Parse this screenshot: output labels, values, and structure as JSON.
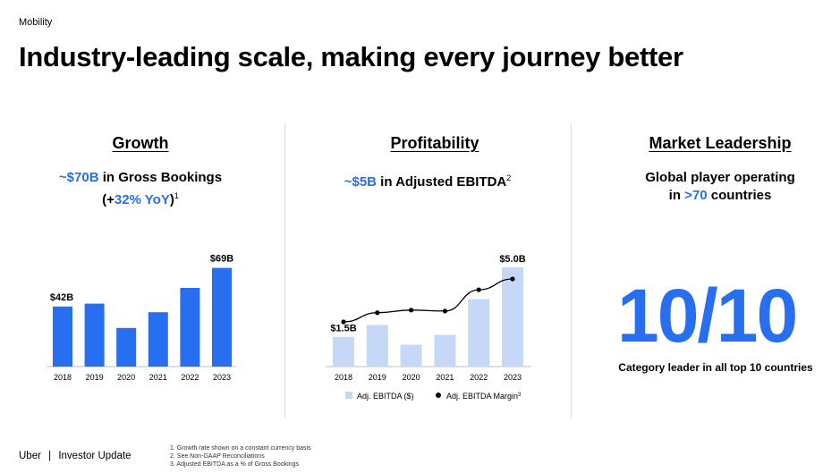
{
  "header": {
    "section": "Mobility",
    "title": "Industry-leading scale, making every journey better"
  },
  "growth": {
    "heading": "Growth",
    "kpi_line1_accent": "~$70B",
    "kpi_line1_rest": " in Gross Bookings",
    "kpi_line2_open": "(+",
    "kpi_line2_accent": "32% YoY",
    "kpi_line2_close": ")",
    "kpi_footnote": "1"
  },
  "profitability": {
    "heading": "Profitability",
    "kpi_accent": "~$5B",
    "kpi_rest": " in Adjusted EBITDA",
    "kpi_footnote": "2"
  },
  "leadership": {
    "heading": "Market Leadership",
    "line1": "Global player operating",
    "line2_open": "in ",
    "line2_accent": ">70",
    "line2_close": " countries",
    "big_stat": "10/10",
    "caption": "Category leader in all top 10 countries"
  },
  "footer": {
    "brand": "Uber",
    "separator": "|",
    "doc": "Investor Update",
    "footnotes": [
      "1. Growth rate shown on a constant currency basis",
      "2. See Non-GAAP Reconciliations",
      "3. Adjusted EBITDA as a % of Gross Bookings"
    ]
  },
  "colors": {
    "accent": "#276ef1",
    "light_bar": "#c6d8f7",
    "line": "#000000"
  },
  "chart_data": [
    {
      "type": "bar",
      "categories": [
        "2018",
        "2019",
        "2020",
        "2021",
        "2022",
        "2023"
      ],
      "values": [
        42,
        44,
        27,
        38,
        55,
        69
      ],
      "data_labels": [
        {
          "category": "2018",
          "text": "$42B"
        },
        {
          "category": "2023",
          "text": "$69B"
        }
      ],
      "ylim": [
        0,
        75
      ],
      "title": "",
      "xlabel": "",
      "ylabel": "",
      "grid": false
    },
    {
      "type": "bar+line",
      "categories": [
        "2018",
        "2019",
        "2020",
        "2021",
        "2022",
        "2023"
      ],
      "series": [
        {
          "name": "Adj. EBITDA ($)",
          "type": "bar",
          "values": [
            1.5,
            2.1,
            1.1,
            1.6,
            3.4,
            5.0
          ]
        },
        {
          "name": "Adj. EBITDA Margin",
          "type": "line",
          "values": [
            0.0,
            0.28,
            0.36,
            0.33,
            0.98,
            1.31
          ]
        }
      ],
      "legend_footnote": "3",
      "data_labels": [
        {
          "category": "2018",
          "text": "$1.5B"
        },
        {
          "category": "2023",
          "text": "$5.0B"
        }
      ],
      "ylim": [
        0,
        5.5
      ],
      "title": "",
      "xlabel": "",
      "ylabel": "",
      "legend": "bottom",
      "grid": false
    }
  ]
}
